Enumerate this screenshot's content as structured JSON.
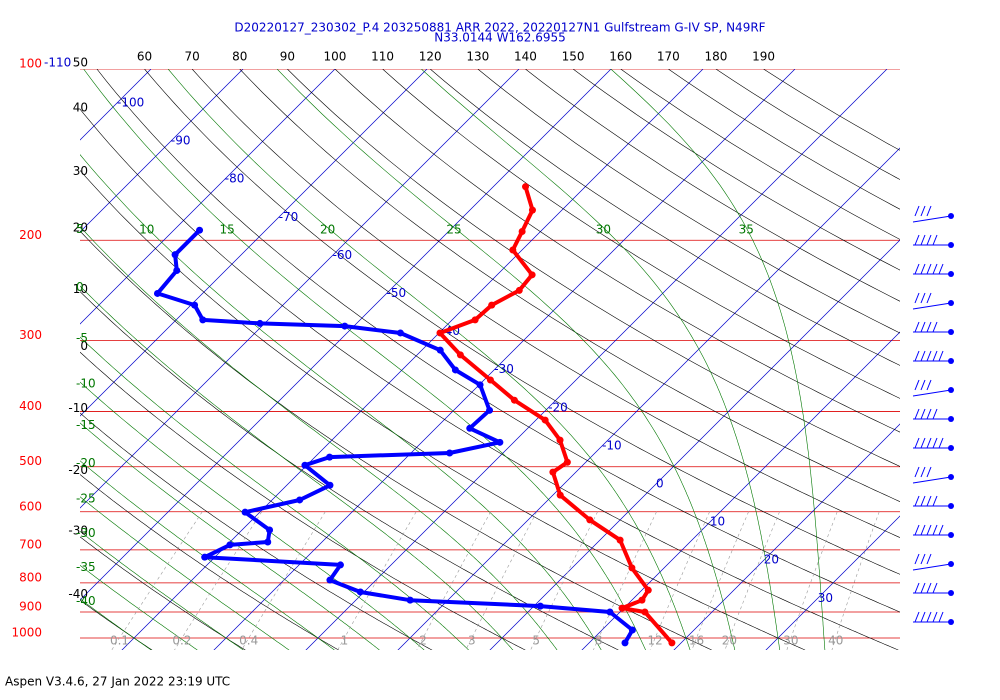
{
  "chart_data": {
    "type": "skewt",
    "title": "D20220127_230302_P.4 203250881 ARR 2022, 20220127N1 Gulfstream G-IV SP, N49RF",
    "subtitle": "N33.0144 W162.6955",
    "footer": "Aspen V3.4.6, 27 Jan 2022  23:19 UTC",
    "log_y": true,
    "ylim": [
      1000,
      100
    ],
    "yticks": [
      100,
      200,
      300,
      400,
      500,
      600,
      700,
      800,
      900,
      1000
    ],
    "xticks": [
      -110,
      -100,
      -90,
      -80,
      -70,
      -60,
      -50,
      -40,
      -30,
      -20,
      -10,
      0,
      10,
      20,
      30
    ],
    "dry_adiabats": [
      -40,
      -30,
      -20,
      -10,
      0,
      10,
      20,
      30,
      40,
      50,
      60,
      70,
      80,
      90,
      100,
      110,
      120,
      130,
      140,
      150,
      160,
      170,
      180,
      190
    ],
    "moist_adiabats": [
      -40,
      -35,
      -30,
      -25,
      -20,
      -15,
      -10,
      -5,
      0,
      5,
      10,
      15,
      20,
      25,
      30,
      35
    ],
    "mixing_ratios": [
      0.1,
      0.2,
      0.4,
      1,
      2,
      3,
      5,
      8,
      12,
      16,
      20,
      30,
      40
    ],
    "series": [
      {
        "color": "#ff0000",
        "pressure": [
          161,
          177,
          193,
          208,
          230,
          245,
          260,
          276,
          291,
          318,
          352,
          382,
          414,
          449,
          491,
          511,
          561,
          620,
          673,
          753,
          824,
          858,
          886,
          900,
          1020
        ],
        "values": [
          -46.5,
          -43.2,
          -42.0,
          -41.0,
          -36.2,
          -35.9,
          -37.3,
          -37.5,
          -39.9,
          -35.3,
          -29.3,
          -24.5,
          -19.0,
          -15.2,
          -12.0,
          -12.5,
          -9.2,
          -3.3,
          2.2,
          6.5,
          10.7,
          11.1,
          9.8,
          12.7,
          19.0
        ]
      },
      {
        "color": "#0000ff",
        "pressure": [
          192,
          212,
          226,
          248,
          260,
          276,
          280,
          283,
          291,
          312,
          338,
          359,
          398,
          428,
          453,
          473,
          481,
          497,
          539,
          572,
          601,
          646,
          678,
          686,
          721,
          744,
          791,
          830,
          858,
          879,
          900,
          968,
          1020
        ],
        "values": [
          -77.2,
          -77.2,
          -75.3,
          -74.9,
          -69.6,
          -67.1,
          -60.5,
          -51.0,
          -44.2,
          -38.0,
          -34.2,
          -29.9,
          -26.1,
          -26.3,
          -21.5,
          -25.8,
          -38.4,
          -40.2,
          -35.3,
          -37.0,
          -41.6,
          -37.0,
          -35.9,
          -39.7,
          -41.1,
          -25.5,
          -25.0,
          -20.4,
          -14.1,
          0.7,
          8.9,
          13.3,
          13.9
        ]
      }
    ]
  }
}
